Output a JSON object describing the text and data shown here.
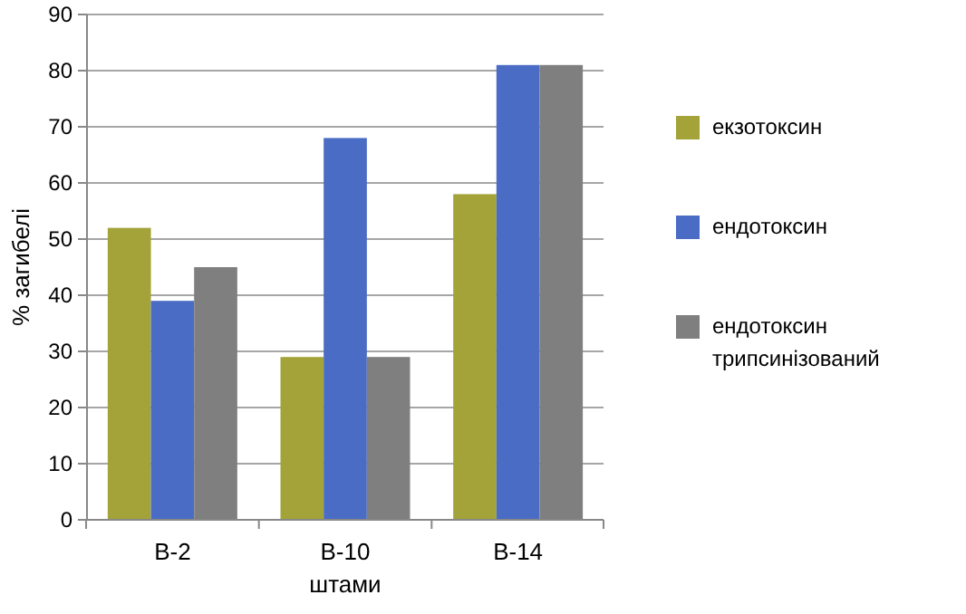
{
  "chart_data": {
    "type": "bar",
    "xlabel": "штами",
    "ylabel": "% загибелі",
    "categories": [
      "В-2",
      "В-10",
      "В-14"
    ],
    "series": [
      {
        "name": "екзотоксин",
        "color": "#a3a33a",
        "values": [
          52,
          29,
          58
        ]
      },
      {
        "name": "ендотоксин",
        "color": "#4a6cc4",
        "values": [
          39,
          68,
          81
        ]
      },
      {
        "name": "ендотоксин трипсинізований",
        "color": "#7f7f7f",
        "values": [
          45,
          29,
          81
        ]
      }
    ],
    "ylim": [
      0,
      90
    ],
    "yticks": [
      0,
      10,
      20,
      30,
      40,
      50,
      60,
      70,
      80,
      90
    ],
    "grid": "y",
    "legend": "right"
  }
}
